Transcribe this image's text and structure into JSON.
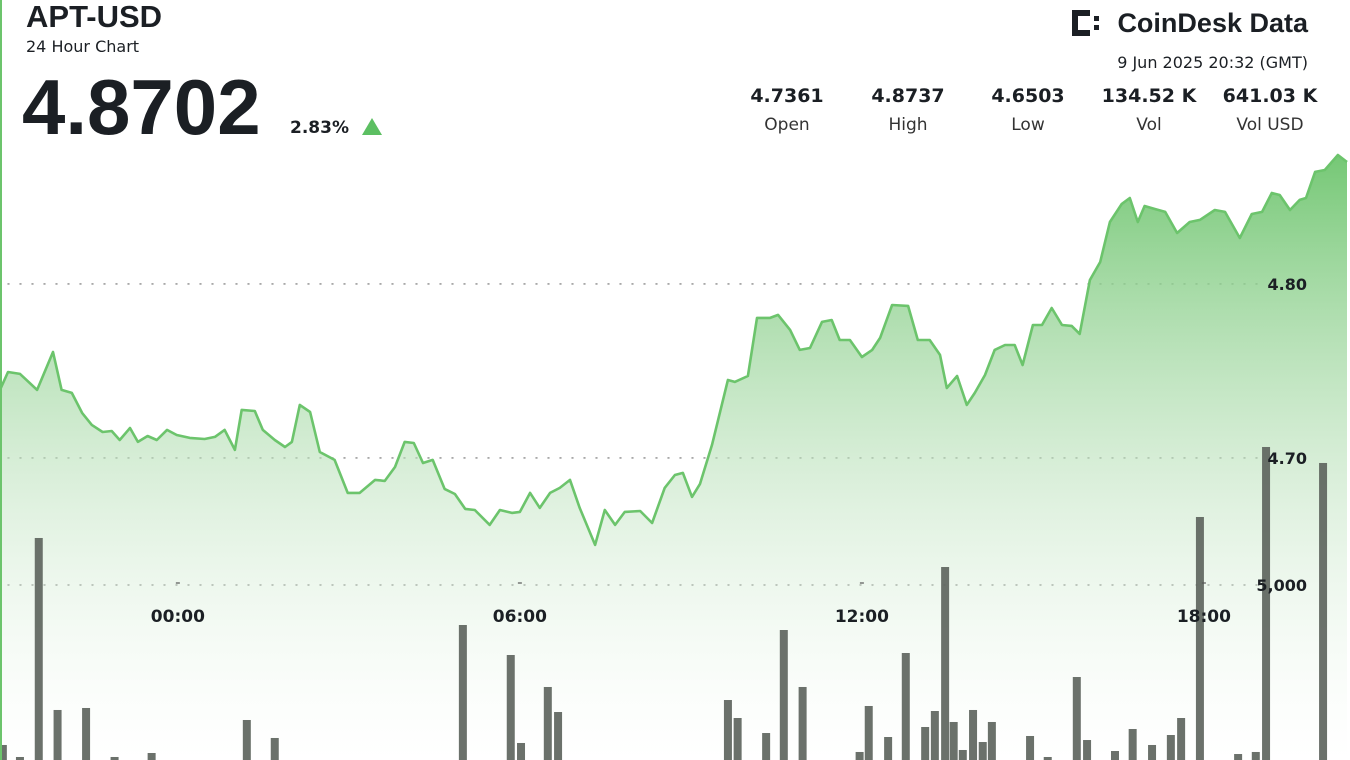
{
  "header": {
    "symbol": "APT-USD",
    "subtitle": "24 Hour Chart",
    "last_price": 4.8702,
    "change_pct": 2.83,
    "change_label": "2.83%",
    "brand": "CoinDesk Data",
    "timestamp": "9 Jun 2025 20:32 (GMT)",
    "stats": [
      {
        "value": 4.7361,
        "label": "Open"
      },
      {
        "value": 4.8737,
        "label": "High"
      },
      {
        "value": 4.6503,
        "label": "Low"
      },
      {
        "value": 134520,
        "value_label": "134.52 K",
        "label": "Vol"
      },
      {
        "value": 641030,
        "value_label": "641.03 K",
        "label": "Vol USD"
      }
    ]
  },
  "chart_data": {
    "type": "line",
    "grid": true,
    "xlim": [
      -3.12,
      20.51
    ],
    "xticks": [
      {
        "value": 0,
        "label": "00:00"
      },
      {
        "value": 6,
        "label": "06:00"
      },
      {
        "value": 12,
        "label": "12:00"
      },
      {
        "value": 18,
        "label": "18:00"
      }
    ],
    "ylim": [
      4.5264,
      4.9632
    ],
    "yticks": [
      {
        "value": 4.8,
        "label": "4.80"
      },
      {
        "value": 4.7,
        "label": "4.70"
      }
    ],
    "y2lim": [
      0,
      21714
    ],
    "y2ticks": [
      {
        "value": 5000,
        "label": "5,000"
      }
    ],
    "series": [
      {
        "type": "area",
        "color": "#6cc46c",
        "x": [
          -3.12,
          -2.98,
          -2.77,
          -2.47,
          -2.19,
          -2.04,
          -1.86,
          -1.68,
          -1.51,
          -1.32,
          -1.16,
          -1.02,
          -0.84,
          -0.7,
          -0.53,
          -0.37,
          -0.19,
          -0.02,
          0.21,
          0.47,
          0.65,
          0.82,
          1.0,
          1.12,
          1.35,
          1.49,
          1.7,
          1.88,
          2.0,
          2.14,
          2.32,
          2.49,
          2.75,
          2.98,
          3.19,
          3.46,
          3.63,
          3.81,
          3.98,
          4.14,
          4.3,
          4.47,
          4.68,
          4.86,
          5.04,
          5.21,
          5.47,
          5.65,
          5.86,
          6.0,
          6.18,
          6.35,
          6.53,
          6.7,
          6.88,
          7.05,
          7.32,
          7.49,
          7.67,
          7.84,
          8.11,
          8.32,
          8.54,
          8.72,
          8.86,
          9.02,
          9.16,
          9.37,
          9.65,
          9.77,
          10.0,
          10.16,
          10.39,
          10.53,
          10.74,
          10.91,
          11.09,
          11.3,
          11.47,
          11.61,
          11.79,
          12.0,
          12.18,
          12.32,
          12.53,
          12.81,
          12.98,
          13.19,
          13.37,
          13.49,
          13.67,
          13.84,
          13.98,
          14.16,
          14.33,
          14.51,
          14.68,
          14.82,
          15.0,
          15.16,
          15.33,
          15.51,
          15.68,
          15.82,
          16.0,
          16.18,
          16.35,
          16.56,
          16.7,
          16.84,
          16.96,
          17.14,
          17.32,
          17.53,
          17.75,
          17.93,
          18.19,
          18.37,
          18.63,
          18.84,
          19.02,
          19.19,
          19.33,
          19.51,
          19.68,
          19.79,
          19.95,
          20.12,
          20.35,
          20.51
        ],
        "values": [
          4.7391,
          4.7494,
          4.7483,
          4.7391,
          4.7609,
          4.7391,
          4.7374,
          4.7259,
          4.719,
          4.7149,
          4.7155,
          4.7103,
          4.7172,
          4.7092,
          4.7126,
          4.7103,
          4.7161,
          4.7132,
          4.7115,
          4.7109,
          4.7121,
          4.7161,
          4.7046,
          4.7276,
          4.727,
          4.7161,
          4.7103,
          4.7063,
          4.7092,
          4.7305,
          4.7264,
          4.7034,
          4.6989,
          4.6799,
          4.6799,
          4.6874,
          4.6868,
          4.6948,
          4.7092,
          4.7086,
          4.6971,
          4.6989,
          4.6822,
          4.6793,
          4.6707,
          4.6701,
          4.6615,
          4.6701,
          4.6684,
          4.669,
          4.6799,
          4.6713,
          4.6799,
          4.6828,
          4.6874,
          4.6713,
          4.65,
          4.6701,
          4.6615,
          4.669,
          4.6695,
          4.6626,
          4.6828,
          4.6902,
          4.6914,
          4.6776,
          4.6851,
          4.7075,
          4.7448,
          4.7437,
          4.7471,
          4.7805,
          4.7805,
          4.7822,
          4.7736,
          4.7621,
          4.7632,
          4.7782,
          4.7793,
          4.7678,
          4.7678,
          4.758,
          4.7621,
          4.769,
          4.7879,
          4.7874,
          4.7678,
          4.7678,
          4.7592,
          4.7402,
          4.7471,
          4.7305,
          4.7374,
          4.7477,
          4.7621,
          4.7649,
          4.7649,
          4.7534,
          4.7764,
          4.7764,
          4.7862,
          4.7764,
          4.7759,
          4.7713,
          4.8023,
          4.8126,
          4.8356,
          4.846,
          4.8494,
          4.8356,
          4.8448,
          4.8431,
          4.8414,
          4.8293,
          4.8356,
          4.8368,
          4.8425,
          4.8414,
          4.8264,
          4.8402,
          4.8414,
          4.8523,
          4.8511,
          4.8425,
          4.8483,
          4.8494,
          4.8644,
          4.8655,
          4.8741,
          4.8701
        ]
      },
      {
        "type": "bar",
        "axis": "y2",
        "color": "#5e655e",
        "x": [
          -3.07,
          -2.77,
          -2.44,
          -2.11,
          -1.61,
          -1.11,
          -0.46,
          1.21,
          1.7,
          5.0,
          5.84,
          6.02,
          6.49,
          6.67,
          9.65,
          9.82,
          10.32,
          10.63,
          10.96,
          11.96,
          12.12,
          12.46,
          12.77,
          13.11,
          13.28,
          13.46,
          13.61,
          13.77,
          13.95,
          14.12,
          14.28,
          14.95,
          15.26,
          15.77,
          15.95,
          16.44,
          16.75,
          17.09,
          17.42,
          17.6,
          17.93,
          18.6,
          18.91,
          19.09,
          20.09
        ],
        "values": [
          429,
          86,
          6343,
          1429,
          1486,
          86,
          200,
          1143,
          629,
          3857,
          3000,
          486,
          2086,
          1371,
          1714,
          1200,
          771,
          3714,
          2086,
          229,
          1543,
          657,
          3057,
          943,
          1400,
          5514,
          1086,
          286,
          1429,
          514,
          1086,
          686,
          86,
          2371,
          571,
          257,
          886,
          429,
          714,
          1200,
          6943,
          171,
          229,
          8943,
          8486
        ]
      }
    ]
  }
}
